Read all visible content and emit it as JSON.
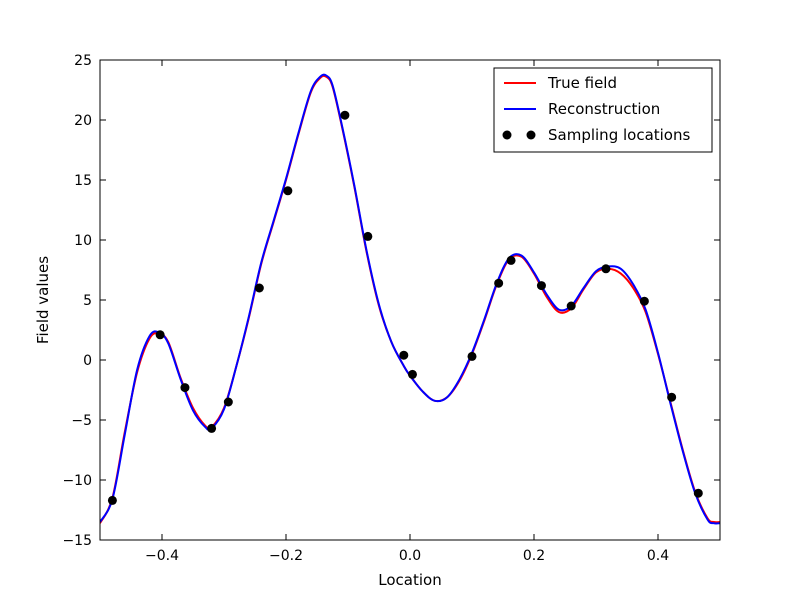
{
  "chart_data": {
    "type": "line",
    "xlabel": "Location",
    "ylabel": "Field values",
    "xlim": [
      -0.5,
      0.5
    ],
    "ylim": [
      -15,
      25
    ],
    "xticks": [
      -0.4,
      -0.2,
      0.0,
      0.2,
      0.4
    ],
    "xtick_labels": [
      "−0.4",
      "−0.2",
      "0.0",
      "0.2",
      "0.4"
    ],
    "yticks": [
      -15,
      -10,
      -5,
      0,
      5,
      10,
      15,
      20,
      25
    ],
    "ytick_labels": [
      "−15",
      "−10",
      "−5",
      "0",
      "5",
      "10",
      "15",
      "20",
      "25"
    ],
    "grid": false,
    "legend_position": "top-right",
    "series": [
      {
        "name": "True field",
        "color": "#ff0000",
        "style": "line",
        "x": [
          -0.5,
          -0.48,
          -0.46,
          -0.44,
          -0.42,
          -0.405,
          -0.39,
          -0.37,
          -0.35,
          -0.33,
          -0.32,
          -0.3,
          -0.28,
          -0.26,
          -0.24,
          -0.22,
          -0.2,
          -0.18,
          -0.16,
          -0.145,
          -0.135,
          -0.125,
          -0.11,
          -0.09,
          -0.07,
          -0.05,
          -0.03,
          -0.01,
          0.0,
          0.02,
          0.04,
          0.06,
          0.08,
          0.1,
          0.12,
          0.14,
          0.16,
          0.18,
          0.2,
          0.22,
          0.24,
          0.26,
          0.28,
          0.3,
          0.32,
          0.34,
          0.36,
          0.38,
          0.4,
          0.42,
          0.44,
          0.46,
          0.48,
          0.49,
          0.5
        ],
        "y": [
          -13.6,
          -11.5,
          -6.0,
          -1.0,
          1.8,
          2.2,
          1.5,
          -1.5,
          -4.0,
          -5.5,
          -5.6,
          -4.0,
          -0.5,
          3.5,
          8.0,
          11.5,
          15.0,
          18.8,
          22.3,
          23.5,
          23.6,
          22.8,
          19.5,
          14.5,
          9.0,
          4.5,
          1.5,
          -0.5,
          -1.3,
          -2.6,
          -3.4,
          -3.1,
          -1.7,
          0.5,
          3.3,
          6.3,
          8.4,
          8.6,
          7.2,
          5.3,
          4.0,
          4.3,
          5.9,
          7.3,
          7.6,
          7.2,
          6.0,
          4.0,
          0.5,
          -3.5,
          -7.5,
          -11.0,
          -13.2,
          -13.5,
          -13.5
        ]
      },
      {
        "name": "Reconstruction",
        "color": "#0000ff",
        "style": "line",
        "x": [
          -0.5,
          -0.48,
          -0.46,
          -0.44,
          -0.42,
          -0.405,
          -0.39,
          -0.37,
          -0.35,
          -0.33,
          -0.32,
          -0.3,
          -0.28,
          -0.26,
          -0.24,
          -0.22,
          -0.2,
          -0.18,
          -0.16,
          -0.145,
          -0.135,
          -0.125,
          -0.11,
          -0.09,
          -0.07,
          -0.05,
          -0.03,
          -0.01,
          0.0,
          0.02,
          0.04,
          0.06,
          0.08,
          0.1,
          0.12,
          0.14,
          0.16,
          0.18,
          0.2,
          0.22,
          0.24,
          0.26,
          0.28,
          0.3,
          0.32,
          0.34,
          0.36,
          0.38,
          0.4,
          0.42,
          0.44,
          0.46,
          0.48,
          0.49,
          0.5
        ],
        "y": [
          -13.5,
          -11.6,
          -6.2,
          -0.8,
          2.0,
          2.3,
          1.4,
          -1.6,
          -4.2,
          -5.6,
          -5.7,
          -4.1,
          -0.5,
          3.6,
          8.1,
          11.6,
          15.1,
          18.9,
          22.4,
          23.6,
          23.7,
          22.9,
          19.6,
          14.6,
          9.1,
          4.6,
          1.5,
          -0.5,
          -1.3,
          -2.6,
          -3.4,
          -3.1,
          -1.6,
          0.6,
          3.4,
          6.4,
          8.5,
          8.7,
          7.3,
          5.5,
          4.2,
          4.5,
          6.0,
          7.4,
          7.8,
          7.6,
          6.3,
          4.2,
          0.6,
          -3.6,
          -7.6,
          -11.1,
          -13.3,
          -13.6,
          -13.6
        ]
      },
      {
        "name": "Sampling locations",
        "color": "#000000",
        "style": "markers",
        "x": [
          -0.48,
          -0.403,
          -0.363,
          -0.32,
          -0.293,
          -0.243,
          -0.197,
          -0.105,
          -0.068,
          -0.01,
          0.004,
          0.1,
          0.143,
          0.163,
          0.212,
          0.26,
          0.316,
          0.378,
          0.422,
          0.465
        ],
        "y": [
          -11.7,
          2.1,
          -2.3,
          -5.7,
          -3.5,
          6.0,
          14.1,
          20.4,
          10.3,
          0.4,
          -1.2,
          0.3,
          6.4,
          8.3,
          6.2,
          4.5,
          7.6,
          4.9,
          -3.1,
          -11.1
        ]
      }
    ]
  }
}
